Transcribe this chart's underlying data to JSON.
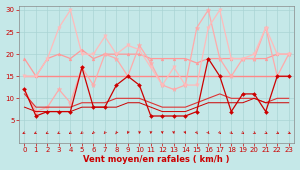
{
  "xlabel": "Vent moyen/en rafales ( km/h )",
  "xlim": [
    -0.5,
    23.5
  ],
  "ylim": [
    0,
    31
  ],
  "yticks": [
    5,
    10,
    15,
    20,
    25,
    30
  ],
  "xticks": [
    0,
    1,
    2,
    3,
    4,
    5,
    6,
    7,
    8,
    9,
    10,
    11,
    12,
    13,
    14,
    15,
    16,
    17,
    18,
    19,
    20,
    21,
    22,
    23
  ],
  "bg_color": "#c5e8e8",
  "grid_color": "#aad4d4",
  "lines": [
    {
      "y": [
        12,
        6,
        7,
        7,
        7,
        17,
        8,
        8,
        13,
        15,
        13,
        6,
        6,
        6,
        6,
        7,
        19,
        15,
        7,
        11,
        11,
        7,
        15,
        15
      ],
      "color": "#cc0000",
      "lw": 0.9,
      "marker": "D",
      "ms": 2.0,
      "zorder": 5
    },
    {
      "y": [
        11,
        8,
        8,
        8,
        8,
        9,
        9,
        9,
        10,
        10,
        10,
        9,
        8,
        8,
        8,
        9,
        10,
        11,
        10,
        10,
        10,
        9,
        10,
        10
      ],
      "color": "#dd3333",
      "lw": 0.8,
      "marker": null,
      "ms": 0,
      "zorder": 3
    },
    {
      "y": [
        8,
        7,
        7,
        7,
        7,
        8,
        8,
        8,
        8,
        9,
        9,
        8,
        7,
        7,
        7,
        8,
        9,
        9,
        9,
        9,
        10,
        9,
        9,
        9
      ],
      "color": "#cc0000",
      "lw": 0.7,
      "marker": null,
      "ms": 0,
      "zorder": 3
    },
    {
      "y": [
        15,
        15,
        15,
        15,
        15,
        15,
        15,
        15,
        15,
        15,
        15,
        15,
        15,
        15,
        15,
        15,
        15,
        15,
        15,
        15,
        15,
        15,
        15,
        15
      ],
      "color": "#ff8888",
      "lw": 1.0,
      "marker": null,
      "ms": 0,
      "zorder": 2
    },
    {
      "y": [
        19,
        15,
        19,
        20,
        19,
        21,
        19,
        20,
        20,
        20,
        20,
        19,
        19,
        19,
        19,
        18,
        19,
        19,
        19,
        19,
        19,
        19,
        20,
        20
      ],
      "color": "#ff9999",
      "lw": 0.9,
      "marker": "^",
      "ms": 2.0,
      "zorder": 2
    },
    {
      "y": [
        12,
        7,
        8,
        12,
        9,
        17,
        13,
        20,
        19,
        15,
        22,
        18,
        13,
        12,
        13,
        26,
        30,
        19,
        15,
        19,
        19,
        26,
        15,
        20
      ],
      "color": "#ffaaaa",
      "lw": 0.9,
      "marker": "*",
      "ms": 3.5,
      "zorder": 2
    },
    {
      "y": [
        15,
        15,
        19,
        26,
        30,
        20,
        20,
        24,
        20,
        22,
        21,
        17,
        13,
        17,
        13,
        13,
        26,
        30,
        19,
        19,
        20,
        26,
        20,
        20
      ],
      "color": "#ffbbbb",
      "lw": 0.9,
      "marker": "v",
      "ms": 2.5,
      "zorder": 2
    }
  ],
  "arrow_color": "#cc0000",
  "tick_color": "#cc0000",
  "label_color": "#cc0000",
  "xlabel_fontsize": 6,
  "tick_fontsize": 5
}
